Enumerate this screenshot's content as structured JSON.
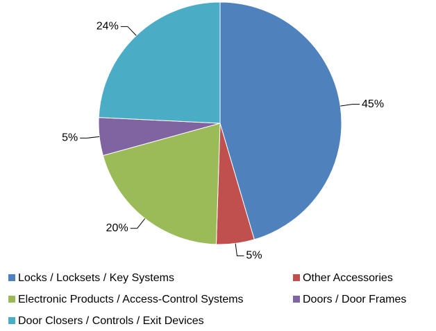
{
  "chart_data": {
    "type": "pie",
    "categories": [
      "Locks / Locksets / Key Systems",
      "Other Accessories",
      "Electronic Products / Access-Control Systems",
      "Doors / Door Frames",
      "Door Closers / Controls / Exit Devices"
    ],
    "values": [
      45,
      5,
      20,
      5,
      24
    ],
    "value_labels": [
      "45%",
      "5%",
      "20%",
      "5%",
      "24%"
    ],
    "colors": [
      "#4f81bd",
      "#c0504d",
      "#9bbb59",
      "#8064a2",
      "#4bacc6"
    ]
  }
}
